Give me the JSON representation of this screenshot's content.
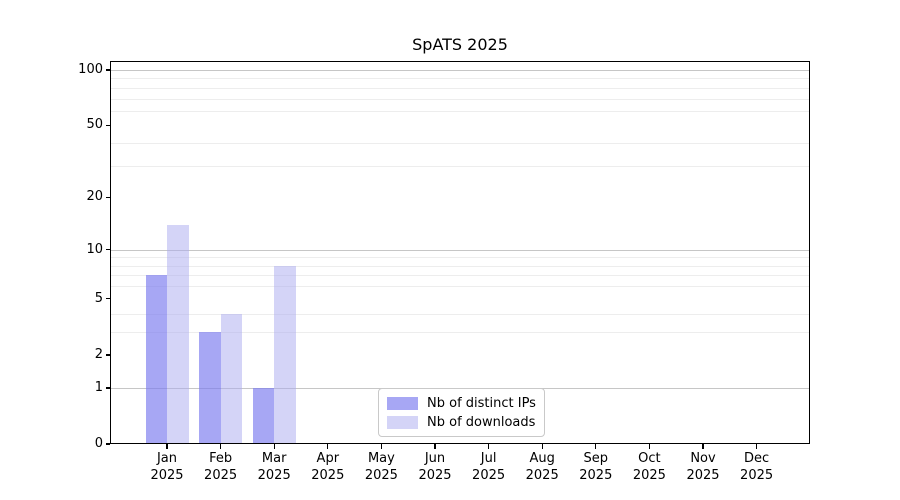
{
  "title": "SpATS 2025",
  "chart_data": {
    "type": "bar",
    "title": "SpATS 2025",
    "categories": [
      "Jan",
      "Feb",
      "Mar",
      "Apr",
      "May",
      "Jun",
      "Jul",
      "Aug",
      "Sep",
      "Oct",
      "Nov",
      "Dec"
    ],
    "year": "2025",
    "series": [
      {
        "name": "Nb of distinct IPs",
        "values": [
          7,
          3,
          1,
          0,
          0,
          0,
          0,
          0,
          0,
          0,
          0,
          0
        ],
        "color": "rgba(122,122,238,0.66)"
      },
      {
        "name": "Nb of downloads",
        "values": [
          14,
          4,
          8,
          0,
          0,
          0,
          0,
          0,
          0,
          0,
          0,
          0
        ],
        "color": "rgba(170,170,240,0.50)"
      }
    ],
    "xlabel": "",
    "ylabel": "",
    "yscale": "log1p",
    "ylim": [
      0,
      110
    ],
    "yticks": [
      0,
      1,
      2,
      5,
      10,
      20,
      50,
      100
    ],
    "major_gridlines": [
      1,
      10,
      100
    ],
    "minor_gridlines": [
      3,
      4,
      6,
      7,
      8,
      9,
      30,
      40,
      60,
      70,
      80,
      90
    ],
    "grid": true,
    "legend_position": "lower center"
  },
  "colors": {
    "bar_distinct_ips": "#a8a8f3",
    "bar_downloads": "#d9d9f7",
    "major_grid": "#c6c6c6",
    "minor_grid": "#ededed",
    "axis": "#000000",
    "background": "#ffffff"
  }
}
